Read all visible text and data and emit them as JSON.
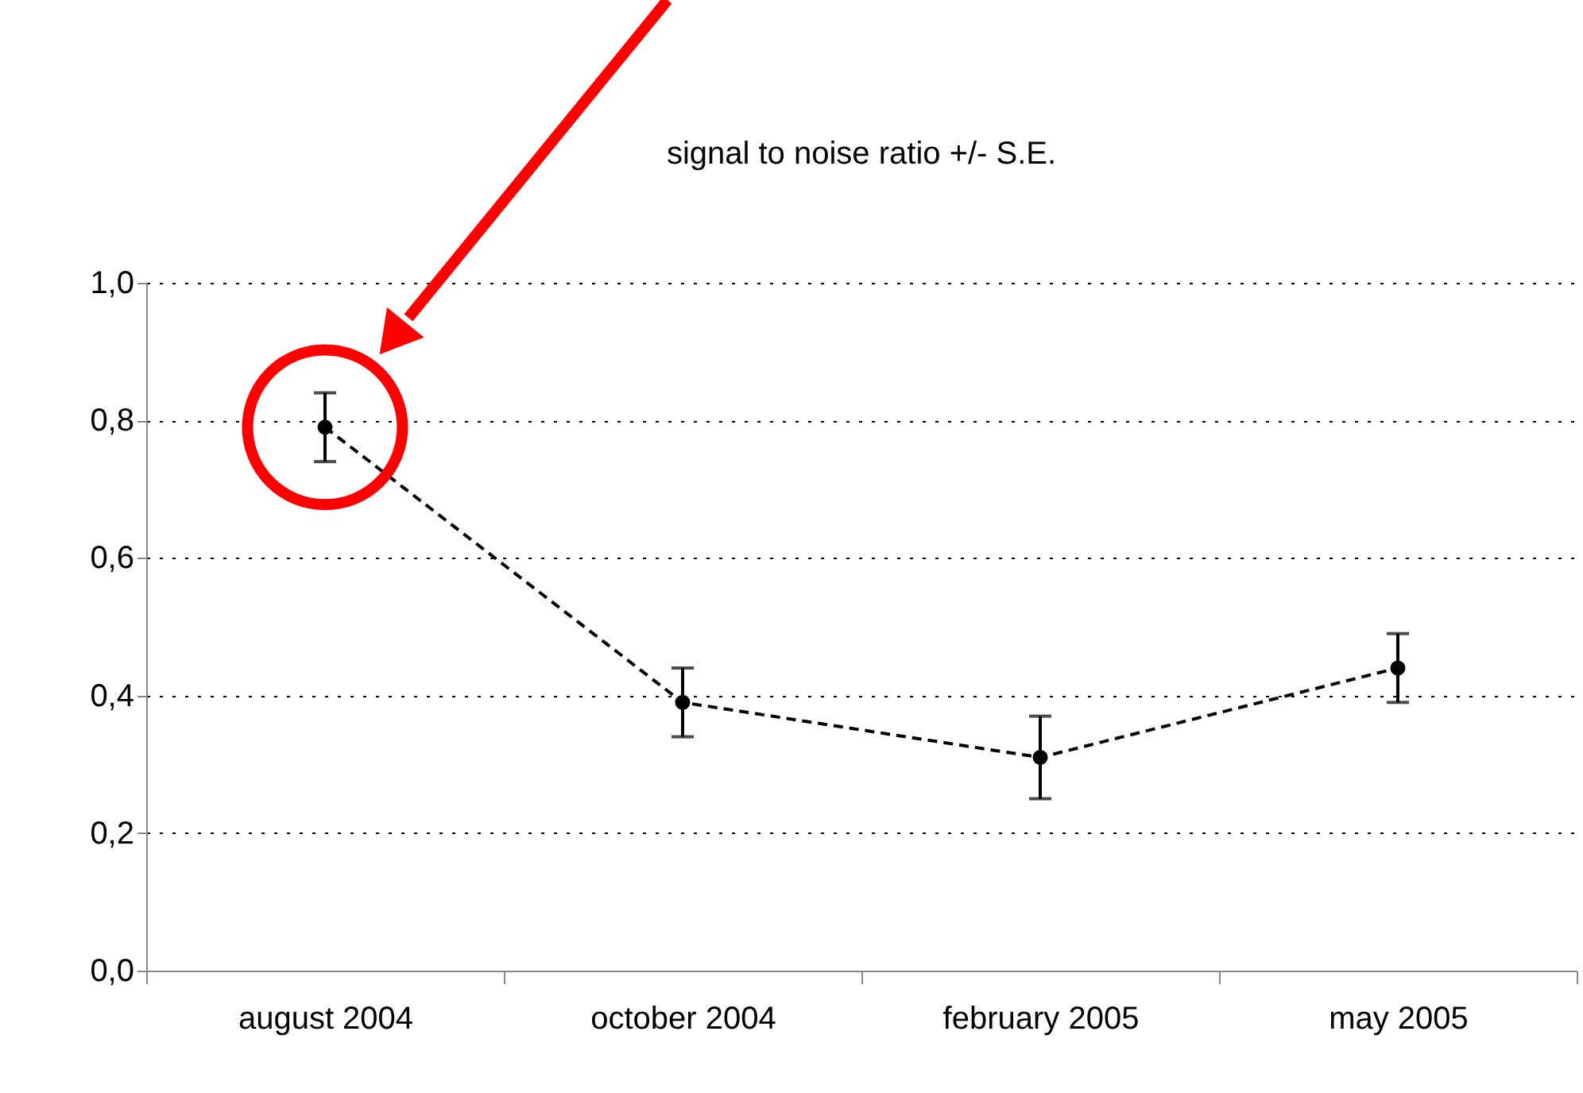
{
  "chart_data": {
    "type": "line",
    "title": "signal to noise ratio +/- S.E.",
    "categories": [
      "august 2004",
      "october 2004",
      "february 2005",
      "may 2005"
    ],
    "series": [
      {
        "color": "#000000",
        "values": [
          0.79,
          0.39,
          0.31,
          0.44
        ],
        "errors": [
          0.05,
          0.05,
          0.06,
          0.05
        ]
      }
    ],
    "ylim": [
      0,
      1
    ],
    "yticks": [
      {
        "value": 0,
        "label": "0,0"
      },
      {
        "value": 0.2,
        "label": "0,2"
      },
      {
        "value": 0.4,
        "label": "0,4"
      },
      {
        "value": 0.6,
        "label": "0,6"
      },
      {
        "value": 0.8,
        "label": "0,8"
      },
      {
        "value": 1,
        "label": "1,0"
      }
    ],
    "grid": "y",
    "marker": "circle",
    "line_style": "dashed"
  }
}
